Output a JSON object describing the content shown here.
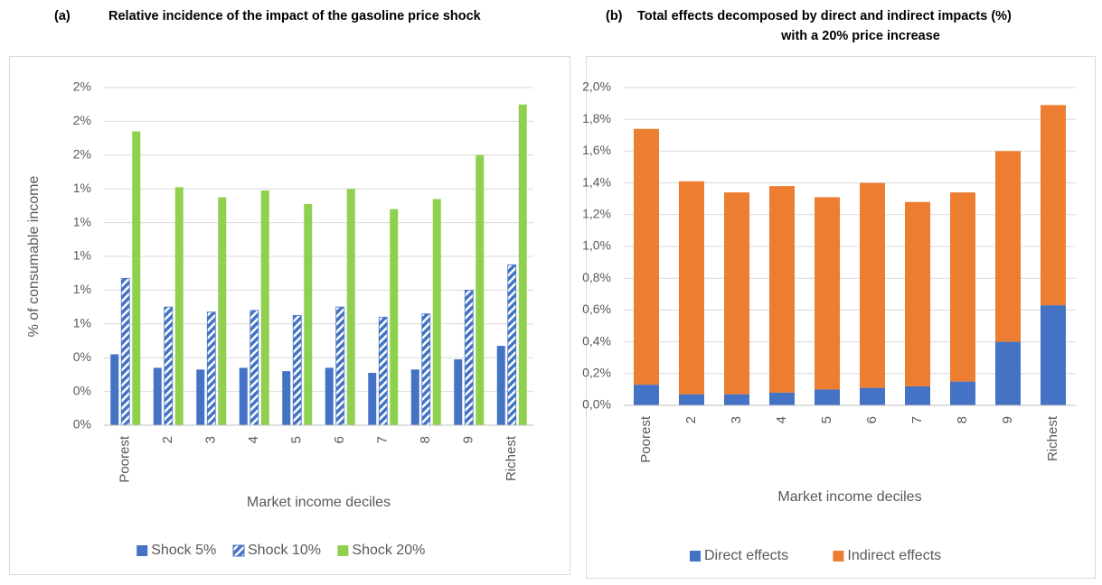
{
  "chart_data": [
    {
      "type": "bar",
      "panel": "(a)",
      "title_lines": [
        "Relative incidence of the impact of the gasoline price shock"
      ],
      "x_label": "Market income deciles",
      "y_label": "% of consumable income",
      "categories": [
        "Poorest",
        "2",
        "3",
        "4",
        "5",
        "6",
        "7",
        "8",
        "9",
        "Richest"
      ],
      "series": [
        {
          "name": "Shock 5%",
          "color": "#4472c4",
          "hatch": false,
          "values": [
            0.42,
            0.34,
            0.33,
            0.34,
            0.32,
            0.34,
            0.31,
            0.33,
            0.39,
            0.47
          ]
        },
        {
          "name": "Shock 10%",
          "color": "#4472c4",
          "hatch": true,
          "values": [
            0.87,
            0.7,
            0.67,
            0.68,
            0.65,
            0.7,
            0.64,
            0.66,
            0.8,
            0.95
          ]
        },
        {
          "name": "Shock 20%",
          "color": "#8fd14f",
          "hatch": false,
          "values": [
            1.74,
            1.41,
            1.35,
            1.39,
            1.31,
            1.4,
            1.28,
            1.34,
            1.6,
            1.9
          ]
        }
      ],
      "ylim": [
        0,
        2
      ],
      "yticks": [
        {
          "value": 0,
          "label": "0%"
        },
        {
          "value": 0.2,
          "label": "0%"
        },
        {
          "value": 0.4,
          "label": "0%"
        },
        {
          "value": 0.6,
          "label": "1%"
        },
        {
          "value": 0.8,
          "label": "1%"
        },
        {
          "value": 1.0,
          "label": "1%"
        },
        {
          "value": 1.2,
          "label": "1%"
        },
        {
          "value": 1.4,
          "label": "1%"
        },
        {
          "value": 1.6,
          "label": "2%"
        },
        {
          "value": 1.8,
          "label": "2%"
        },
        {
          "value": 2.0,
          "label": "2%"
        }
      ],
      "grid": true,
      "legend": "bottom"
    },
    {
      "type": "stacked_bar",
      "panel": "(b)",
      "title_lines": [
        "Total effects decomposed by direct and indirect impacts (%)",
        "with a 20% price increase"
      ],
      "x_label": "Market income deciles",
      "categories": [
        "Poorest",
        "2",
        "3",
        "4",
        "5",
        "6",
        "7",
        "8",
        "9",
        "Richest"
      ],
      "series": [
        {
          "name": "Direct effects",
          "color": "#4472c4",
          "values": [
            0.13,
            0.07,
            0.07,
            0.08,
            0.1,
            0.11,
            0.12,
            0.15,
            0.4,
            0.63
          ]
        },
        {
          "name": "Indirect effects",
          "color": "#ed7d31",
          "values": [
            1.61,
            1.34,
            1.27,
            1.3,
            1.21,
            1.29,
            1.16,
            1.19,
            1.2,
            1.26
          ]
        }
      ],
      "ylim": [
        0,
        2
      ],
      "yticks": [
        {
          "value": 0,
          "label": "0,0%"
        },
        {
          "value": 0.2,
          "label": "0,2%"
        },
        {
          "value": 0.4,
          "label": "0,4%"
        },
        {
          "value": 0.6,
          "label": "0,6%"
        },
        {
          "value": 0.8,
          "label": "0,8%"
        },
        {
          "value": 1.0,
          "label": "1,0%"
        },
        {
          "value": 1.2,
          "label": "1,2%"
        },
        {
          "value": 1.4,
          "label": "1,4%"
        },
        {
          "value": 1.6,
          "label": "1,6%"
        },
        {
          "value": 1.8,
          "label": "1,8%"
        },
        {
          "value": 2.0,
          "label": "2,0%"
        }
      ],
      "grid": true,
      "legend": "bottom"
    }
  ]
}
